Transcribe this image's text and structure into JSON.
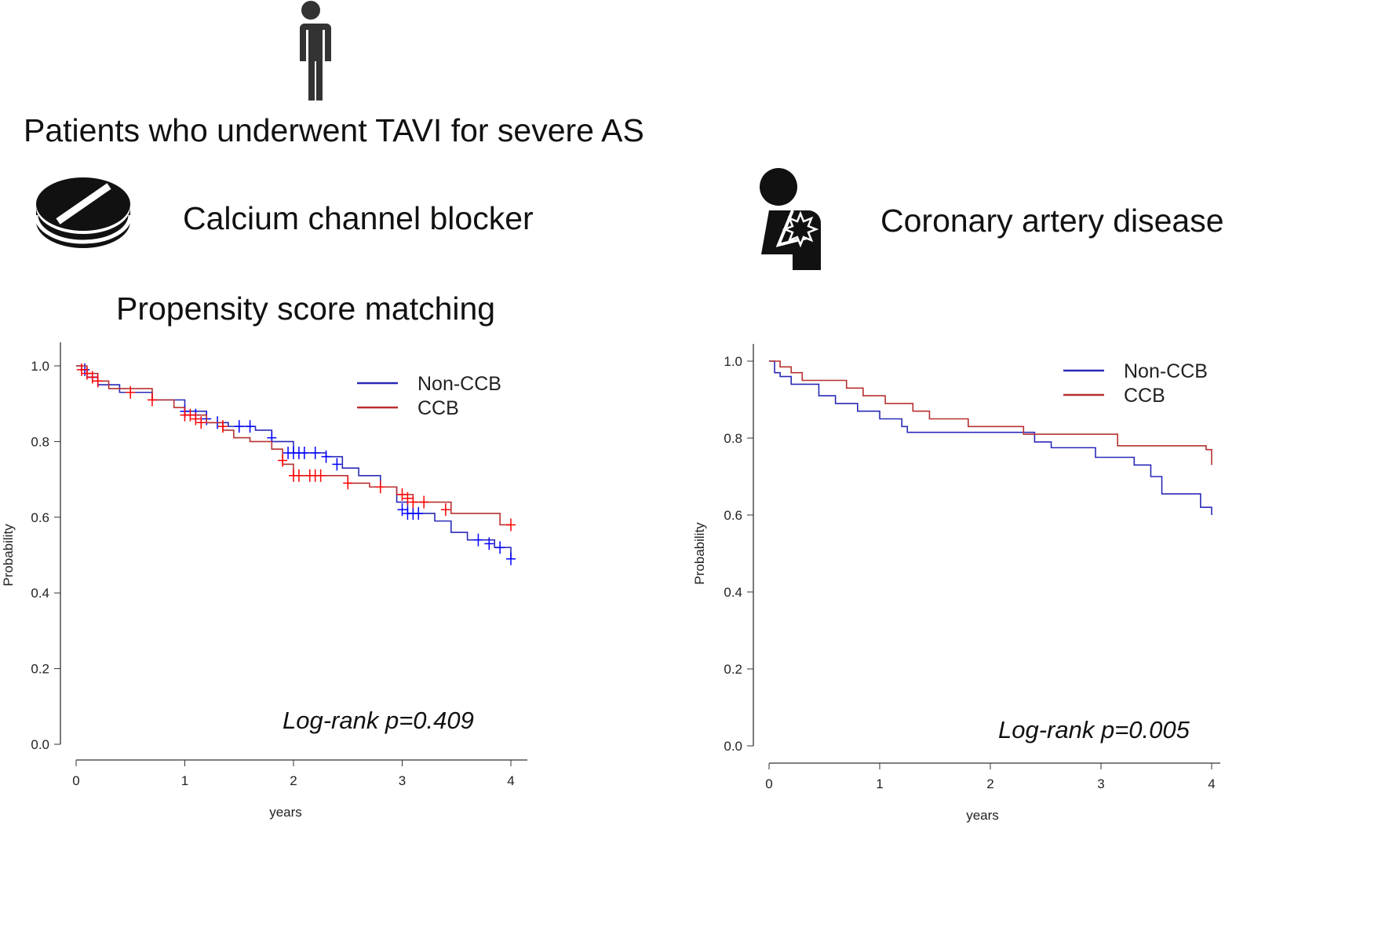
{
  "header": {
    "title": "Patients who underwent TAVI for severe AS",
    "left_label": "Calcium channel blocker",
    "right_label": "Coronary artery disease",
    "subtitle": "Propensity score matching",
    "icons": [
      "person-icon",
      "pill-icon",
      "chest-pain-icon"
    ]
  },
  "colors": {
    "non_ccb": "#2a2ab8",
    "ccb": "#b83030",
    "censor_non_ccb": "#0000ff",
    "censor_ccb": "#ff0000"
  },
  "chart_data": [
    {
      "type": "line",
      "title": "",
      "xlabel": "years",
      "ylabel": "Probability",
      "xlim": [
        0,
        4
      ],
      "ylim": [
        0,
        1
      ],
      "xticks": [
        "0",
        "1",
        "2",
        "3",
        "4"
      ],
      "yticks": [
        "0.0",
        "0.2",
        "0.4",
        "0.6",
        "0.8",
        "1.0"
      ],
      "grid": false,
      "legend": "top-right",
      "annotation": "Log-rank p=0.409",
      "series": [
        {
          "name": "Non-CCB",
          "step": [
            [
              0,
              1.0
            ],
            [
              0.05,
              0.99
            ],
            [
              0.1,
              0.97
            ],
            [
              0.2,
              0.95
            ],
            [
              0.4,
              0.93
            ],
            [
              0.7,
              0.91
            ],
            [
              1.0,
              0.88
            ],
            [
              1.2,
              0.85
            ],
            [
              1.4,
              0.84
            ],
            [
              1.65,
              0.83
            ],
            [
              1.8,
              0.8
            ],
            [
              2.0,
              0.77
            ],
            [
              2.3,
              0.76
            ],
            [
              2.45,
              0.73
            ],
            [
              2.6,
              0.71
            ],
            [
              2.8,
              0.68
            ],
            [
              2.95,
              0.64
            ],
            [
              3.05,
              0.61
            ],
            [
              3.3,
              0.59
            ],
            [
              3.45,
              0.56
            ],
            [
              3.6,
              0.54
            ],
            [
              3.85,
              0.52
            ],
            [
              4.0,
              0.49
            ]
          ],
          "censored": [
            [
              0.08,
              0.99
            ],
            [
              0.15,
              0.97
            ],
            [
              0.2,
              0.96
            ],
            [
              1.0,
              0.88
            ],
            [
              1.1,
              0.87
            ],
            [
              1.2,
              0.86
            ],
            [
              1.3,
              0.85
            ],
            [
              1.5,
              0.84
            ],
            [
              1.6,
              0.84
            ],
            [
              1.8,
              0.81
            ],
            [
              1.95,
              0.77
            ],
            [
              2.0,
              0.77
            ],
            [
              2.05,
              0.77
            ],
            [
              2.1,
              0.77
            ],
            [
              2.2,
              0.77
            ],
            [
              2.3,
              0.76
            ],
            [
              2.4,
              0.74
            ],
            [
              3.0,
              0.62
            ],
            [
              3.05,
              0.61
            ],
            [
              3.1,
              0.61
            ],
            [
              3.15,
              0.61
            ],
            [
              3.7,
              0.54
            ],
            [
              3.8,
              0.53
            ],
            [
              3.9,
              0.52
            ],
            [
              4.0,
              0.49
            ]
          ]
        },
        {
          "name": "CCB",
          "step": [
            [
              0,
              1.0
            ],
            [
              0.1,
              0.98
            ],
            [
              0.2,
              0.96
            ],
            [
              0.3,
              0.94
            ],
            [
              0.7,
              0.91
            ],
            [
              0.9,
              0.89
            ],
            [
              1.0,
              0.87
            ],
            [
              1.2,
              0.85
            ],
            [
              1.35,
              0.83
            ],
            [
              1.45,
              0.81
            ],
            [
              1.6,
              0.8
            ],
            [
              1.8,
              0.78
            ],
            [
              1.9,
              0.74
            ],
            [
              2.0,
              0.71
            ],
            [
              2.5,
              0.69
            ],
            [
              2.7,
              0.68
            ],
            [
              2.95,
              0.66
            ],
            [
              3.1,
              0.64
            ],
            [
              3.45,
              0.61
            ],
            [
              3.9,
              0.58
            ],
            [
              4.0,
              0.58
            ]
          ],
          "censored": [
            [
              0.05,
              0.99
            ],
            [
              0.1,
              0.98
            ],
            [
              0.15,
              0.97
            ],
            [
              0.2,
              0.96
            ],
            [
              0.5,
              0.93
            ],
            [
              0.7,
              0.91
            ],
            [
              1.0,
              0.87
            ],
            [
              1.05,
              0.87
            ],
            [
              1.1,
              0.86
            ],
            [
              1.15,
              0.85
            ],
            [
              1.35,
              0.84
            ],
            [
              1.9,
              0.75
            ],
            [
              2.0,
              0.71
            ],
            [
              2.05,
              0.71
            ],
            [
              2.15,
              0.71
            ],
            [
              2.2,
              0.71
            ],
            [
              2.25,
              0.71
            ],
            [
              2.5,
              0.69
            ],
            [
              2.8,
              0.68
            ],
            [
              3.0,
              0.66
            ],
            [
              3.05,
              0.65
            ],
            [
              3.1,
              0.64
            ],
            [
              3.2,
              0.64
            ],
            [
              3.4,
              0.62
            ],
            [
              4.0,
              0.58
            ]
          ]
        }
      ]
    },
    {
      "type": "line",
      "title": "",
      "xlabel": "years",
      "ylabel": "Probability",
      "xlim": [
        0,
        4
      ],
      "ylim": [
        0,
        1
      ],
      "xticks": [
        "0",
        "1",
        "2",
        "3",
        "4"
      ],
      "yticks": [
        "0.0",
        "0.2",
        "0.4",
        "0.6",
        "0.8",
        "1.0"
      ],
      "grid": false,
      "legend": "top-right",
      "annotation": "Log-rank p=0.005",
      "series": [
        {
          "name": "Non-CCB",
          "step": [
            [
              0,
              1.0
            ],
            [
              0.05,
              0.97
            ],
            [
              0.1,
              0.96
            ],
            [
              0.2,
              0.94
            ],
            [
              0.45,
              0.91
            ],
            [
              0.6,
              0.89
            ],
            [
              0.8,
              0.87
            ],
            [
              1.0,
              0.85
            ],
            [
              1.2,
              0.83
            ],
            [
              1.25,
              0.815
            ],
            [
              2.4,
              0.79
            ],
            [
              2.55,
              0.775
            ],
            [
              2.95,
              0.75
            ],
            [
              3.3,
              0.73
            ],
            [
              3.45,
              0.7
            ],
            [
              3.55,
              0.655
            ],
            [
              3.9,
              0.62
            ],
            [
              4.0,
              0.6
            ]
          ],
          "censored": []
        },
        {
          "name": "CCB",
          "step": [
            [
              0,
              1.0
            ],
            [
              0.1,
              0.985
            ],
            [
              0.2,
              0.97
            ],
            [
              0.3,
              0.95
            ],
            [
              0.7,
              0.93
            ],
            [
              0.85,
              0.91
            ],
            [
              1.05,
              0.89
            ],
            [
              1.3,
              0.87
            ],
            [
              1.45,
              0.85
            ],
            [
              1.8,
              0.83
            ],
            [
              2.3,
              0.81
            ],
            [
              3.1,
              0.81
            ],
            [
              3.15,
              0.78
            ],
            [
              3.95,
              0.77
            ],
            [
              4.0,
              0.73
            ]
          ],
          "censored": []
        }
      ]
    }
  ]
}
